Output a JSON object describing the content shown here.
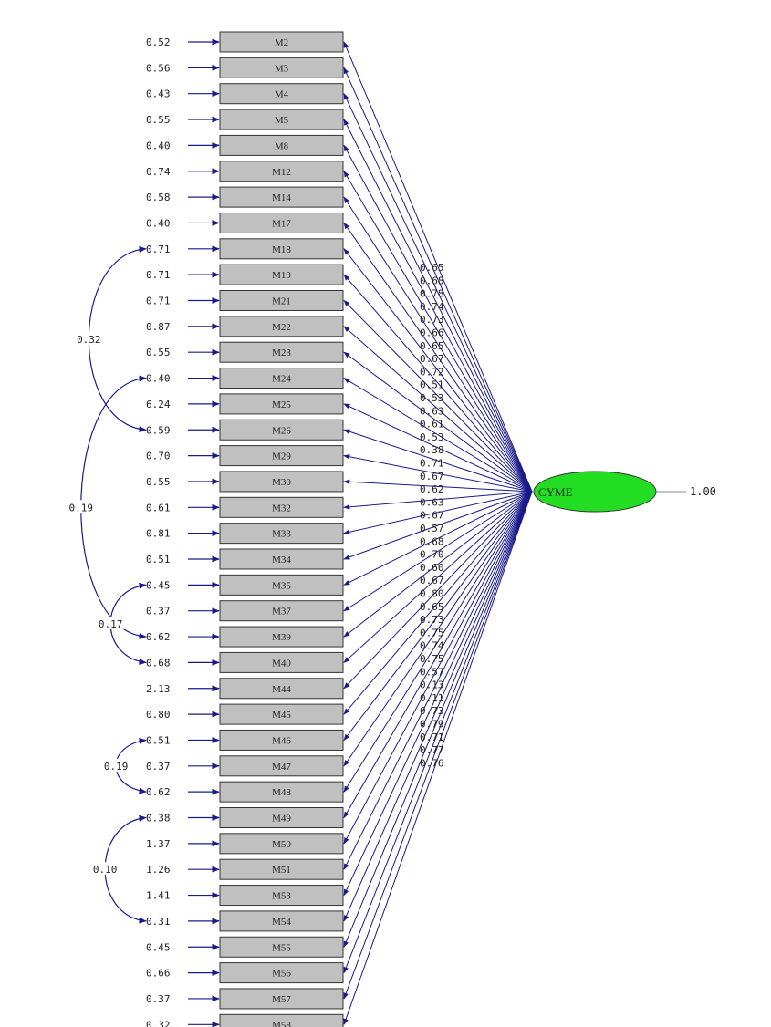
{
  "latent": {
    "name": "CYME",
    "variance": "1.00",
    "fill": "#22dd22"
  },
  "colors": {
    "arrow": "#1a1a8c",
    "box_fill": "#c0c0c0",
    "box_stroke": "#333333",
    "text": "#222222"
  },
  "indicators": [
    {
      "name": "M2",
      "error": "0.52",
      "loading": "0.65"
    },
    {
      "name": "M3",
      "error": "0.56",
      "loading": "0.68"
    },
    {
      "name": "M4",
      "error": "0.43",
      "loading": "0.78"
    },
    {
      "name": "M5",
      "error": "0.55",
      "loading": "0.74"
    },
    {
      "name": "M8",
      "error": "0.40",
      "loading": "0.73"
    },
    {
      "name": "M12",
      "error": "0.74",
      "loading": "0.66"
    },
    {
      "name": "M14",
      "error": "0.58",
      "loading": "0.65"
    },
    {
      "name": "M17",
      "error": "0.40",
      "loading": "0.67"
    },
    {
      "name": "M18",
      "error": "0.71",
      "loading": "0.72"
    },
    {
      "name": "M19",
      "error": "0.71",
      "loading": "0.51"
    },
    {
      "name": "M21",
      "error": "0.71",
      "loading": "0.53"
    },
    {
      "name": "M22",
      "error": "0.87",
      "loading": "0.63"
    },
    {
      "name": "M23",
      "error": "0.55",
      "loading": "0.61"
    },
    {
      "name": "M24",
      "error": "0.40",
      "loading": "0.53"
    },
    {
      "name": "M25",
      "error": "6.24",
      "loading": "0.38"
    },
    {
      "name": "M26",
      "error": "0.59",
      "loading": "0.71"
    },
    {
      "name": "M29",
      "error": "0.70",
      "loading": "0.67"
    },
    {
      "name": "M30",
      "error": "0.55",
      "loading": "0.62"
    },
    {
      "name": "M32",
      "error": "0.61",
      "loading": "0.63"
    },
    {
      "name": "M33",
      "error": "0.81",
      "loading": "0.67"
    },
    {
      "name": "M34",
      "error": "0.51",
      "loading": "0.57"
    },
    {
      "name": "M35",
      "error": "0.45",
      "loading": "0.68"
    },
    {
      "name": "M37",
      "error": "0.37",
      "loading": "0.70"
    },
    {
      "name": "M39",
      "error": "0.62",
      "loading": "0.60"
    },
    {
      "name": "M40",
      "error": "0.68",
      "loading": "0.67"
    },
    {
      "name": "M44",
      "error": "2.13",
      "loading": "0.80"
    },
    {
      "name": "M45",
      "error": "0.80",
      "loading": "0.65"
    },
    {
      "name": "M46",
      "error": "0.51",
      "loading": "0.73"
    },
    {
      "name": "M47",
      "error": "0.37",
      "loading": "0.75"
    },
    {
      "name": "M48",
      "error": "0.62",
      "loading": "0.74"
    },
    {
      "name": "M49",
      "error": "0.38",
      "loading": "0.75"
    },
    {
      "name": "M50",
      "error": "1.37",
      "loading": "0.57"
    },
    {
      "name": "M51",
      "error": "1.26",
      "loading": "0.13"
    },
    {
      "name": "M53",
      "error": "1.41",
      "loading": "0.11"
    },
    {
      "name": "M54",
      "error": "0.31",
      "loading": "0.73"
    },
    {
      "name": "M55",
      "error": "0.45",
      "loading": "0.79"
    },
    {
      "name": "M56",
      "error": "0.66",
      "loading": "0.71"
    },
    {
      "name": "M57",
      "error": "0.37",
      "loading": "0.77"
    },
    {
      "name": "M58",
      "error": "0.32",
      "loading": "0.76"
    }
  ],
  "covariances": [
    {
      "from": "M18",
      "to": "M26",
      "value": "0.32"
    },
    {
      "from": "M24",
      "to": "M39",
      "value": "0.19"
    },
    {
      "from": "M35",
      "to": "M40",
      "value": "0.17"
    },
    {
      "from": "M46",
      "to": "M48",
      "value": "0.19"
    },
    {
      "from": "M49",
      "to": "M54",
      "value": "0.10"
    }
  ]
}
